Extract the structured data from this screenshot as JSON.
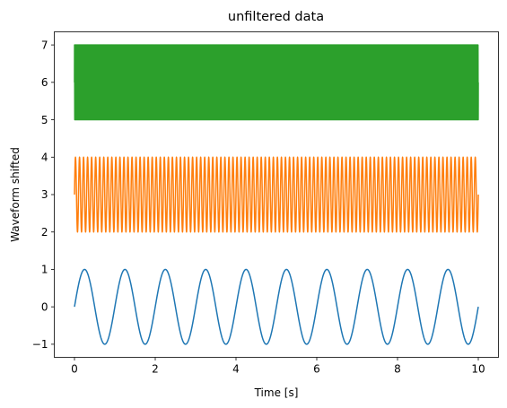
{
  "chart_data": {
    "type": "line",
    "title": "unfiltered data",
    "xlabel": "Time [s]",
    "ylabel": "Waveform shifted",
    "xlim": [
      -0.5,
      10.5
    ],
    "ylim": [
      -1.35,
      7.35
    ],
    "xticks": [
      0,
      2,
      4,
      6,
      8,
      10
    ],
    "xtick_labels": [
      "0",
      "2",
      "4",
      "6",
      "8",
      "10"
    ],
    "yticks": [
      -1,
      0,
      1,
      2,
      3,
      4,
      5,
      6,
      7
    ],
    "ytick_labels": [
      "−1",
      "0",
      "1",
      "2",
      "3",
      "4",
      "5",
      "6",
      "7"
    ],
    "grid": false,
    "series": [
      {
        "color": "#1f77b4",
        "function": "sine",
        "frequency_hz": 1,
        "amplitude": 1,
        "offset": 0,
        "x_range": [
          0,
          10
        ]
      },
      {
        "color": "#ff7f0e",
        "function": "sine",
        "frequency_hz": 10,
        "amplitude": 1,
        "offset": 3,
        "x_range": [
          0,
          10
        ]
      },
      {
        "color": "#2ca02c",
        "function": "sine",
        "frequency_hz": 100,
        "amplitude": 1,
        "offset": 6,
        "x_range": [
          0,
          10
        ]
      }
    ]
  }
}
